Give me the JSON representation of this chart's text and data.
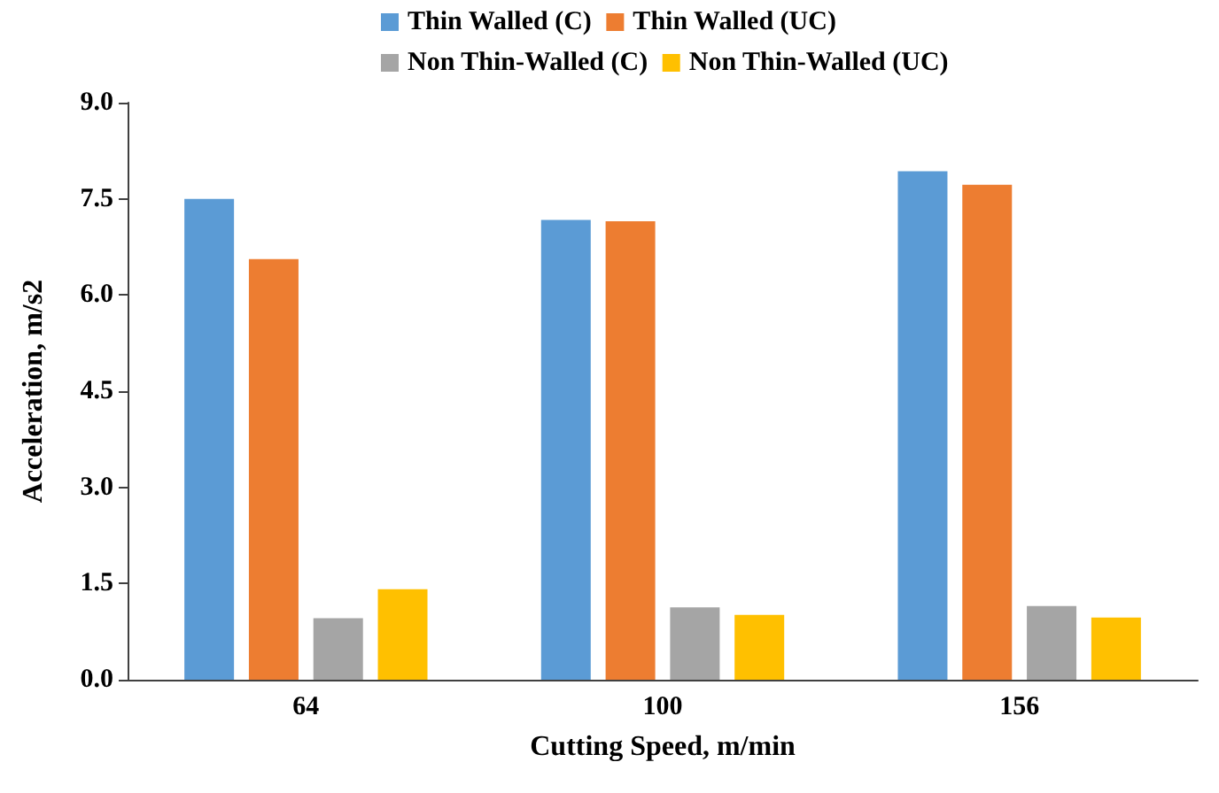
{
  "chart_data": {
    "type": "bar",
    "xlabel": "Cutting Speed, m/min",
    "ylabel": "Acceleration, m/s2",
    "categories": [
      "64",
      "100",
      "156"
    ],
    "series": [
      {
        "name": "Thin Walled (C)",
        "color": "#5b9bd5",
        "values": [
          7.5,
          7.17,
          7.93
        ]
      },
      {
        "name": "Thin Walled (UC)",
        "color": "#ed7d31",
        "values": [
          6.56,
          7.15,
          7.72
        ]
      },
      {
        "name": "Non Thin-Walled (C)",
        "color": "#a5a5a5",
        "values": [
          0.96,
          1.13,
          1.15
        ]
      },
      {
        "name": "Non Thin-Walled (UC)",
        "color": "#ffc000",
        "values": [
          1.41,
          1.01,
          0.97
        ]
      }
    ],
    "ylim": [
      0,
      9
    ],
    "yticks": [
      {
        "value": 0,
        "label": "0.0"
      },
      {
        "value": 1.5,
        "label": "1.5"
      },
      {
        "value": 3,
        "label": "3.0"
      },
      {
        "value": 4.5,
        "label": "4.5"
      },
      {
        "value": 6,
        "label": "6.0"
      },
      {
        "value": 7.5,
        "label": "7.5"
      },
      {
        "value": 9,
        "label": "9.0"
      }
    ],
    "grid": false,
    "legend": "top"
  }
}
